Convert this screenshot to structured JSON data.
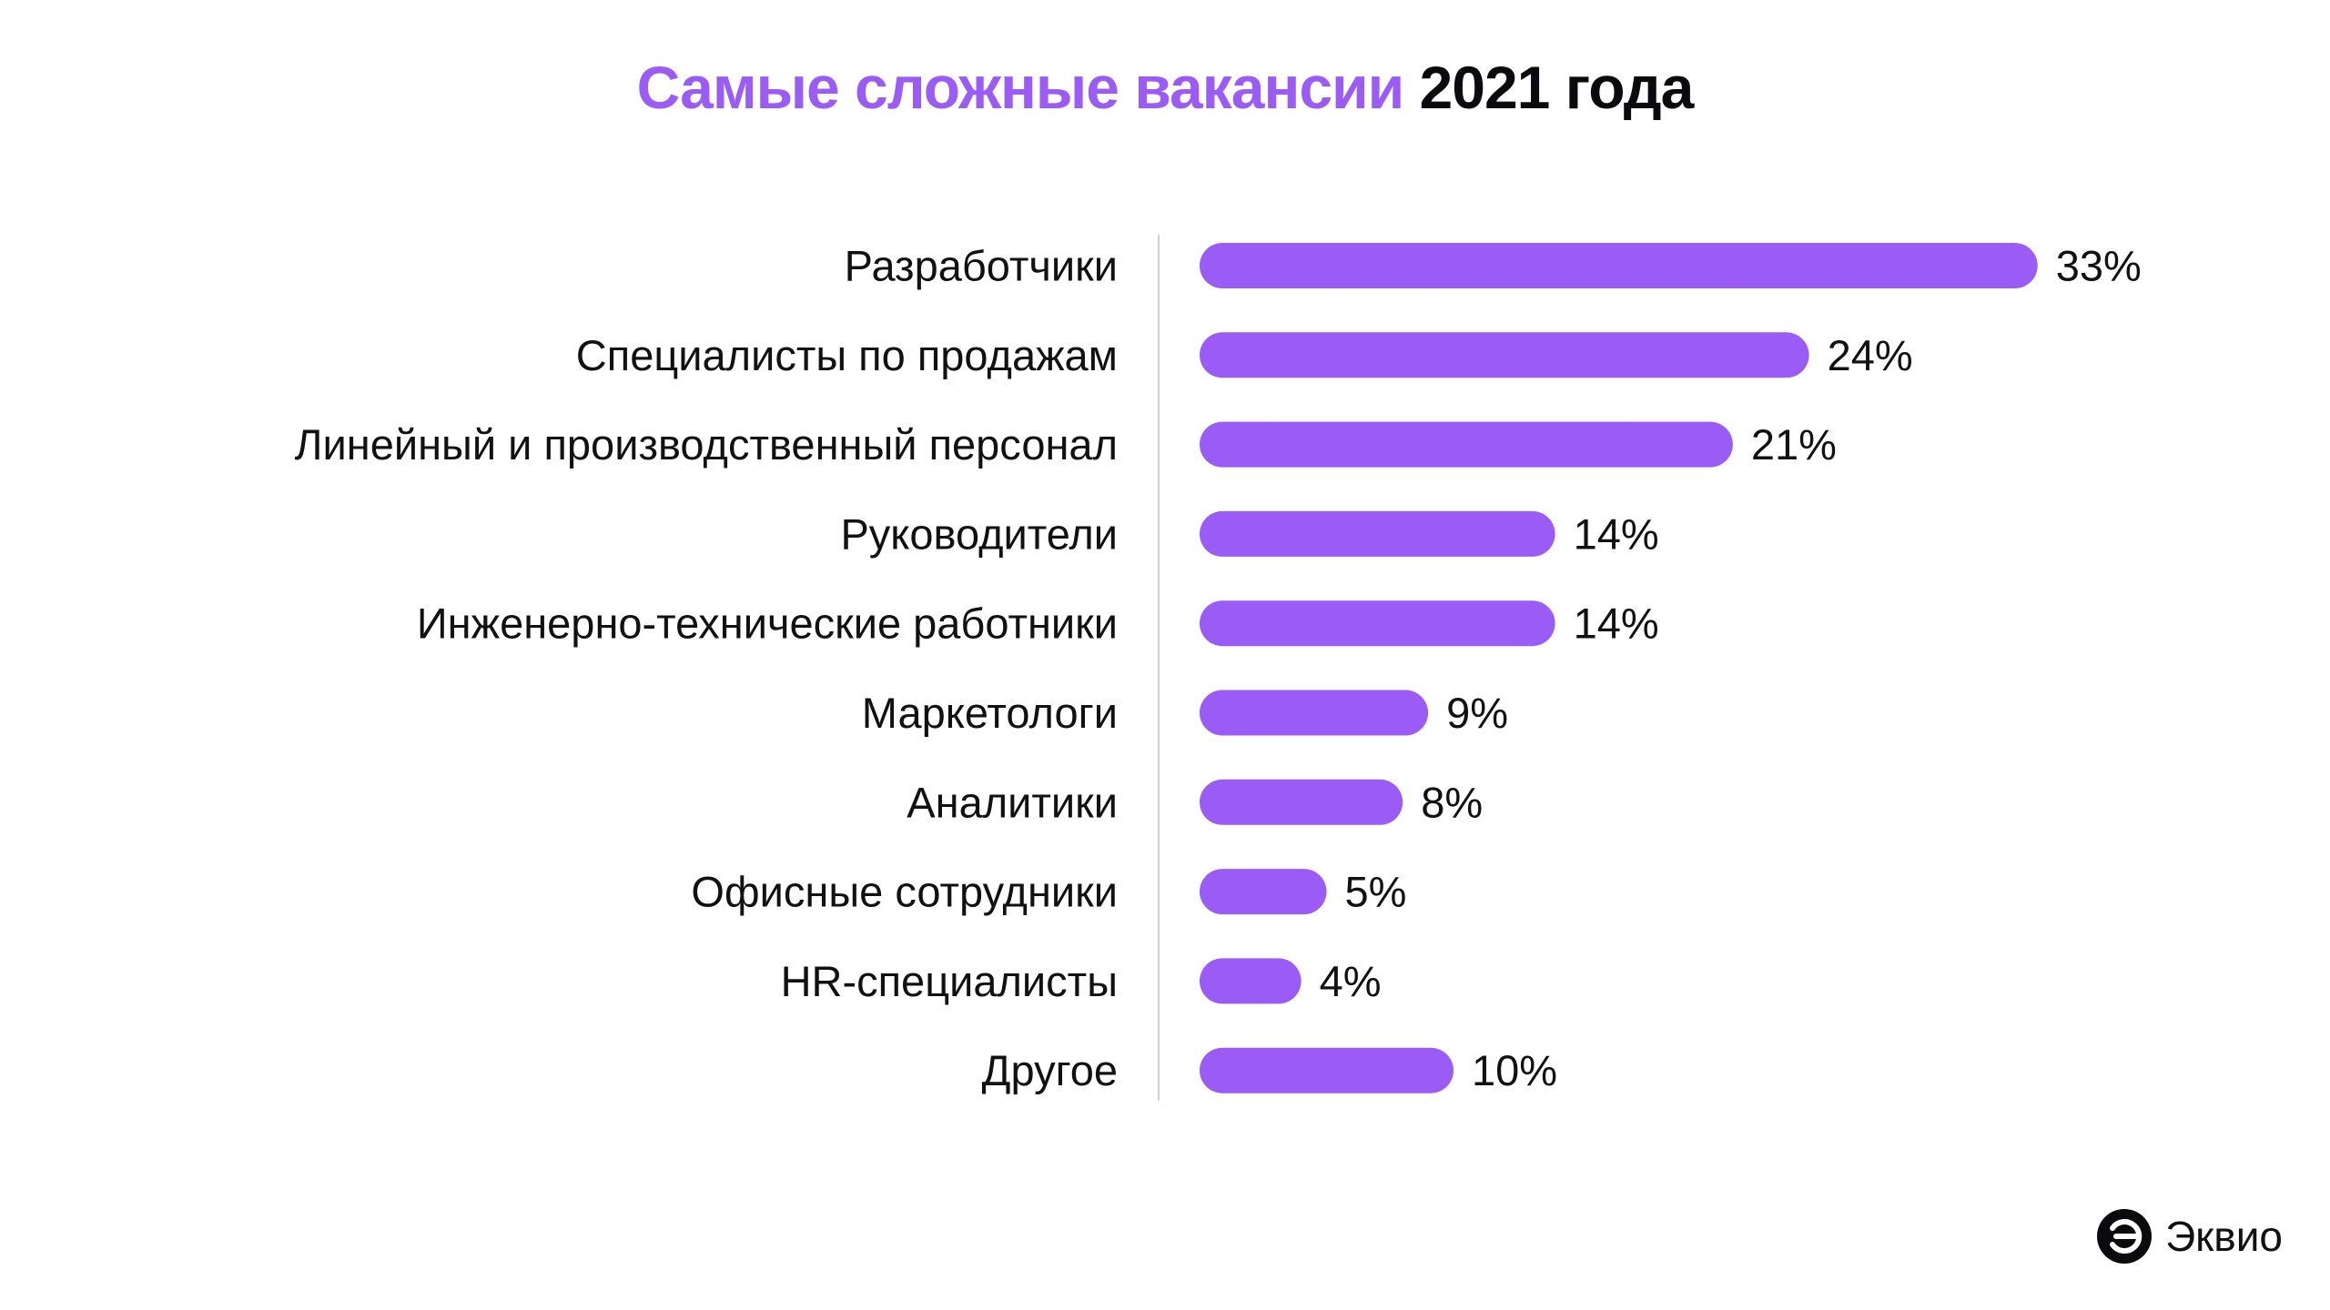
{
  "title": {
    "accent": "Самые сложные вакансии",
    "rest": "2021 года"
  },
  "brand": {
    "name": "Эквио"
  },
  "colors": {
    "bar": "#9b5cf6",
    "title_accent": "#9b5cf6",
    "text": "#111111"
  },
  "chart_data": {
    "type": "bar",
    "orientation": "horizontal",
    "categories": [
      "Разработчики",
      "Специалисты по продажам",
      "Линейный и производственный персонал",
      "Руководители",
      "Инженерно-технические работники",
      "Маркетологи",
      "Аналитики",
      "Офисные сотрудники",
      "HR-специалисты",
      "Другое"
    ],
    "values": [
      33,
      24,
      21,
      14,
      14,
      9,
      8,
      5,
      4,
      10
    ],
    "value_labels": [
      "33%",
      "24%",
      "21%",
      "14%",
      "14%",
      "9%",
      "8%",
      "5%",
      "4%",
      "10%"
    ],
    "unit": "%",
    "grid": false,
    "legend": "none"
  }
}
